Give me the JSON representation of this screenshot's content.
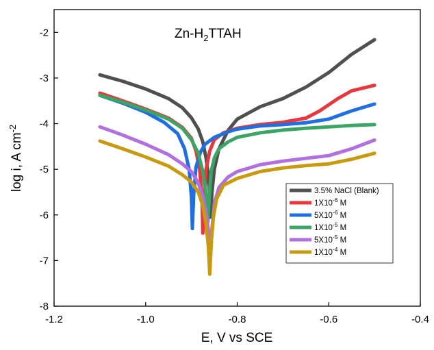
{
  "chart_data": {
    "type": "line",
    "title": "Zn-H2TTAH",
    "title_parts": {
      "before": "Zn-H",
      "subscript": "2",
      "after": "TTAH"
    },
    "xlabel": "E, V vs SCE",
    "ylabel": "log i, A cm",
    "ylabel_sup": "-2",
    "xlim": [
      -1.2,
      -0.4
    ],
    "ylim": [
      -8,
      -1.5
    ],
    "xticks": [
      -1.2,
      -1.0,
      -0.8,
      -0.6,
      -0.4
    ],
    "xtick_labels": [
      "-1.2",
      "-1.0",
      "-0.8",
      "-0.6",
      "-0.4"
    ],
    "yticks": [
      -8,
      -7,
      -6,
      -5,
      -4,
      -3,
      -2
    ],
    "ytick_labels": [
      "-8",
      "-7",
      "-6",
      "-5",
      "-4",
      "-3",
      "-2"
    ],
    "grid": false,
    "legend_position": "lower-right",
    "series": [
      {
        "name": "3.5% NaCl (Blank)",
        "legend_parts": {
          "base": "3.5% NaCl (Blank)",
          "sup": "",
          "after": ""
        },
        "color": "#505050",
        "points": [
          [
            -1.1,
            -2.93
          ],
          [
            -1.05,
            -3.07
          ],
          [
            -1.0,
            -3.24
          ],
          [
            -0.95,
            -3.45
          ],
          [
            -0.92,
            -3.65
          ],
          [
            -0.9,
            -3.87
          ],
          [
            -0.885,
            -4.12
          ],
          [
            -0.875,
            -4.4
          ],
          [
            -0.868,
            -4.75
          ],
          [
            -0.863,
            -5.15
          ],
          [
            -0.86,
            -5.6
          ],
          [
            -0.858,
            -6.05
          ],
          [
            -0.855,
            -5.5
          ],
          [
            -0.85,
            -5.0
          ],
          [
            -0.84,
            -4.55
          ],
          [
            -0.82,
            -4.15
          ],
          [
            -0.8,
            -3.9
          ],
          [
            -0.75,
            -3.63
          ],
          [
            -0.7,
            -3.45
          ],
          [
            -0.65,
            -3.2
          ],
          [
            -0.6,
            -2.88
          ],
          [
            -0.55,
            -2.48
          ],
          [
            -0.5,
            -2.16
          ]
        ]
      },
      {
        "name": "1X10-6 M",
        "legend_parts": {
          "base": "1X10",
          "sup": "-6",
          "after": " M"
        },
        "color": "#e8383d",
        "points": [
          [
            -1.1,
            -3.33
          ],
          [
            -1.05,
            -3.5
          ],
          [
            -1.0,
            -3.68
          ],
          [
            -0.95,
            -3.88
          ],
          [
            -0.92,
            -4.08
          ],
          [
            -0.9,
            -4.32
          ],
          [
            -0.89,
            -4.6
          ],
          [
            -0.882,
            -5.0
          ],
          [
            -0.877,
            -5.6
          ],
          [
            -0.875,
            -6.4
          ],
          [
            -0.872,
            -5.7
          ],
          [
            -0.868,
            -5.0
          ],
          [
            -0.86,
            -4.6
          ],
          [
            -0.85,
            -4.35
          ],
          [
            -0.83,
            -4.2
          ],
          [
            -0.8,
            -4.1
          ],
          [
            -0.75,
            -4.02
          ],
          [
            -0.7,
            -3.97
          ],
          [
            -0.65,
            -3.88
          ],
          [
            -0.62,
            -3.72
          ],
          [
            -0.58,
            -3.45
          ],
          [
            -0.55,
            -3.28
          ],
          [
            -0.5,
            -3.16
          ]
        ]
      },
      {
        "name": "5X10-6 M",
        "legend_parts": {
          "base": "5X10",
          "sup": "-6",
          "after": " M"
        },
        "color": "#1f6fe0",
        "points": [
          [
            -1.1,
            -3.38
          ],
          [
            -1.05,
            -3.55
          ],
          [
            -1.0,
            -3.75
          ],
          [
            -0.96,
            -3.97
          ],
          [
            -0.93,
            -4.22
          ],
          [
            -0.915,
            -4.55
          ],
          [
            -0.905,
            -5.0
          ],
          [
            -0.9,
            -5.6
          ],
          [
            -0.898,
            -6.3
          ],
          [
            -0.895,
            -5.55
          ],
          [
            -0.89,
            -4.95
          ],
          [
            -0.88,
            -4.62
          ],
          [
            -0.87,
            -4.45
          ],
          [
            -0.85,
            -4.3
          ],
          [
            -0.82,
            -4.18
          ],
          [
            -0.8,
            -4.12
          ],
          [
            -0.75,
            -4.05
          ],
          [
            -0.7,
            -4.02
          ],
          [
            -0.65,
            -3.98
          ],
          [
            -0.6,
            -3.9
          ],
          [
            -0.55,
            -3.72
          ],
          [
            -0.5,
            -3.57
          ]
        ]
      },
      {
        "name": "1X10-5 M",
        "legend_parts": {
          "base": "1X10",
          "sup": "-5",
          "after": " M"
        },
        "color": "#3aa564",
        "points": [
          [
            -1.1,
            -3.38
          ],
          [
            -1.05,
            -3.53
          ],
          [
            -1.0,
            -3.7
          ],
          [
            -0.95,
            -3.9
          ],
          [
            -0.92,
            -4.1
          ],
          [
            -0.9,
            -4.35
          ],
          [
            -0.885,
            -4.65
          ],
          [
            -0.875,
            -5.05
          ],
          [
            -0.868,
            -5.55
          ],
          [
            -0.864,
            -6.15
          ],
          [
            -0.861,
            -5.6
          ],
          [
            -0.857,
            -5.05
          ],
          [
            -0.85,
            -4.75
          ],
          [
            -0.84,
            -4.55
          ],
          [
            -0.82,
            -4.4
          ],
          [
            -0.8,
            -4.3
          ],
          [
            -0.75,
            -4.2
          ],
          [
            -0.7,
            -4.14
          ],
          [
            -0.65,
            -4.1
          ],
          [
            -0.6,
            -4.07
          ],
          [
            -0.55,
            -4.04
          ],
          [
            -0.5,
            -4.02
          ]
        ]
      },
      {
        "name": "5X10-5 M",
        "legend_parts": {
          "base": "5X10",
          "sup": "-5",
          "after": " M"
        },
        "color": "#b070e0",
        "points": [
          [
            -1.1,
            -4.07
          ],
          [
            -1.05,
            -4.25
          ],
          [
            -1.0,
            -4.45
          ],
          [
            -0.95,
            -4.68
          ],
          [
            -0.92,
            -4.88
          ],
          [
            -0.9,
            -5.05
          ],
          [
            -0.885,
            -5.3
          ],
          [
            -0.875,
            -5.6
          ],
          [
            -0.868,
            -5.95
          ],
          [
            -0.862,
            -6.4
          ],
          [
            -0.858,
            -6.9
          ],
          [
            -0.855,
            -6.3
          ],
          [
            -0.85,
            -5.75
          ],
          [
            -0.84,
            -5.4
          ],
          [
            -0.82,
            -5.17
          ],
          [
            -0.8,
            -5.05
          ],
          [
            -0.75,
            -4.9
          ],
          [
            -0.7,
            -4.82
          ],
          [
            -0.65,
            -4.76
          ],
          [
            -0.6,
            -4.7
          ],
          [
            -0.55,
            -4.55
          ],
          [
            -0.5,
            -4.36
          ]
        ]
      },
      {
        "name": "1X10-4 M",
        "legend_parts": {
          "base": "1X10",
          "sup": "-4",
          "after": " M"
        },
        "color": "#c89a10",
        "points": [
          [
            -1.1,
            -4.38
          ],
          [
            -1.05,
            -4.55
          ],
          [
            -1.0,
            -4.73
          ],
          [
            -0.95,
            -4.93
          ],
          [
            -0.92,
            -5.12
          ],
          [
            -0.9,
            -5.28
          ],
          [
            -0.885,
            -5.5
          ],
          [
            -0.875,
            -5.8
          ],
          [
            -0.868,
            -6.2
          ],
          [
            -0.863,
            -6.7
          ],
          [
            -0.86,
            -7.3
          ],
          [
            -0.857,
            -6.65
          ],
          [
            -0.852,
            -6.05
          ],
          [
            -0.845,
            -5.65
          ],
          [
            -0.83,
            -5.35
          ],
          [
            -0.8,
            -5.2
          ],
          [
            -0.75,
            -5.05
          ],
          [
            -0.7,
            -4.97
          ],
          [
            -0.65,
            -4.92
          ],
          [
            -0.6,
            -4.88
          ],
          [
            -0.55,
            -4.78
          ],
          [
            -0.5,
            -4.65
          ]
        ]
      }
    ]
  }
}
